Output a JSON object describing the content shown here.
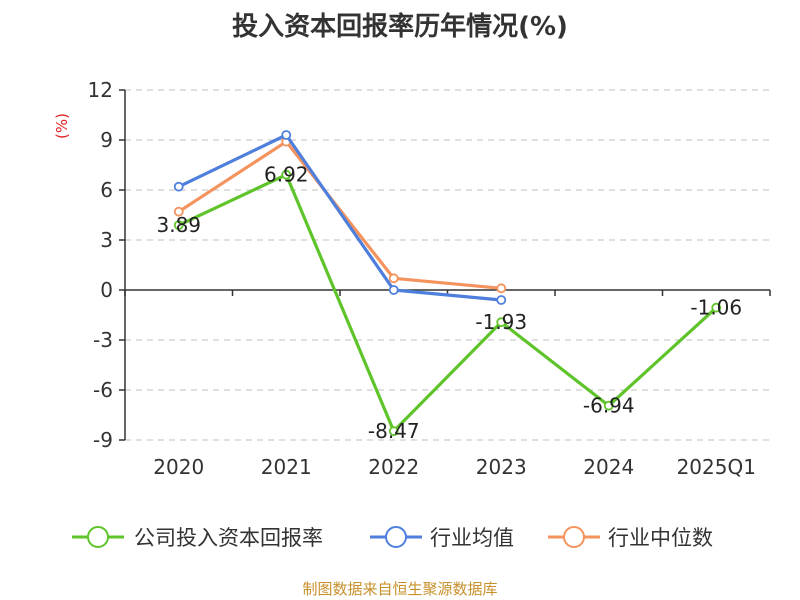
{
  "title": "投入资本回报率历年情况(%)",
  "source": "制图数据来自恒生聚源数据库",
  "colors": {
    "company": "#5ec42a",
    "industry_avg": "#4f7fdc",
    "industry_median": "#f4935d",
    "grid": "#cccccc",
    "axis": "#333333"
  },
  "chart_data": {
    "type": "line",
    "title": "投入资本回报率历年情况(%)",
    "ylabel": "(%)",
    "xlabel": "",
    "categories": [
      "2020",
      "2021",
      "2022",
      "2023",
      "2024",
      "2025Q1"
    ],
    "ylim": [
      -9,
      12
    ],
    "yticks": [
      12,
      9,
      6,
      3,
      0,
      -3,
      -6,
      -9
    ],
    "ytick_labels": [
      "12",
      "9",
      "6",
      "3",
      "0",
      "-3",
      "-6",
      "-9"
    ],
    "grid": true,
    "legend_position": "bottom",
    "series": [
      {
        "key": "company",
        "name": "公司投入资本回报率",
        "values": [
          3.89,
          6.92,
          -8.47,
          -1.93,
          -6.94,
          -1.06
        ],
        "labels": [
          "3.89",
          "6.92",
          "-8.47",
          "-1.93",
          "-6.94",
          "-1.06"
        ]
      },
      {
        "key": "industry_avg",
        "name": "行业均值",
        "values": [
          6.2,
          9.3,
          0.0,
          -0.6,
          null,
          null
        ]
      },
      {
        "key": "industry_median",
        "name": "行业中位数",
        "values": [
          4.7,
          8.9,
          0.7,
          0.1,
          null,
          null
        ]
      }
    ]
  }
}
